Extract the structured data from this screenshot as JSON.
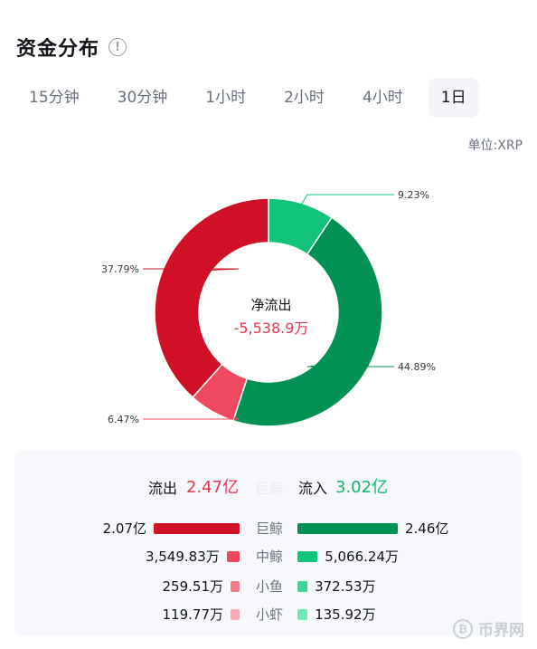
{
  "header": {
    "title": "资金分布",
    "info_icon": "info-icon"
  },
  "tabs": [
    {
      "label": "15分钟",
      "active": false
    },
    {
      "label": "30分钟",
      "active": false
    },
    {
      "label": "1小时",
      "active": false
    },
    {
      "label": "2小时",
      "active": false
    },
    {
      "label": "4小时",
      "active": false
    },
    {
      "label": "1日",
      "active": true
    }
  ],
  "unit_label": "单位:XRP",
  "chart_data": {
    "type": "pie",
    "center_label": "净流出",
    "center_value": "-5,538.9万",
    "slices": [
      {
        "label": "9.23%",
        "value": 9.23,
        "color": "#12c37a"
      },
      {
        "label": "44.89%",
        "value": 44.89,
        "color": "#019152"
      },
      {
        "label": "6.47%",
        "value": 6.47,
        "color": "#f0485e"
      },
      {
        "label": "37.79%",
        "value": 37.79,
        "color": "#cf1025"
      }
    ]
  },
  "summary": {
    "outflow_label": "流出",
    "outflow_value": "2.47亿",
    "faded_text": "巨鲸",
    "inflow_label": "流入",
    "inflow_value": "3.02亿"
  },
  "breakdown": [
    {
      "category": "巨鲸",
      "outflow": "2.07亿",
      "inflow": "2.46亿",
      "out_ratio": 1.0,
      "in_ratio": 1.0,
      "out_color": "#cf1025",
      "in_color": "#019152"
    },
    {
      "category": "中鲸",
      "outflow": "3,549.83万",
      "inflow": "5,066.24万",
      "out_ratio": 0.15,
      "in_ratio": 0.2,
      "out_color": "#f0485e",
      "in_color": "#12c37a"
    },
    {
      "category": "小鱼",
      "outflow": "259.51万",
      "inflow": "372.53万",
      "out_ratio": 0.08,
      "in_ratio": 0.1,
      "out_color": "#f47a88",
      "in_color": "#3ad896"
    },
    {
      "category": "小虾",
      "outflow": "119.77万",
      "inflow": "135.92万",
      "out_ratio": 0.08,
      "in_ratio": 0.1,
      "out_color": "#f9aab3",
      "in_color": "#6ee8b5"
    }
  ],
  "watermark": {
    "text": "币界网",
    "icon": "bitcoin-icon"
  }
}
